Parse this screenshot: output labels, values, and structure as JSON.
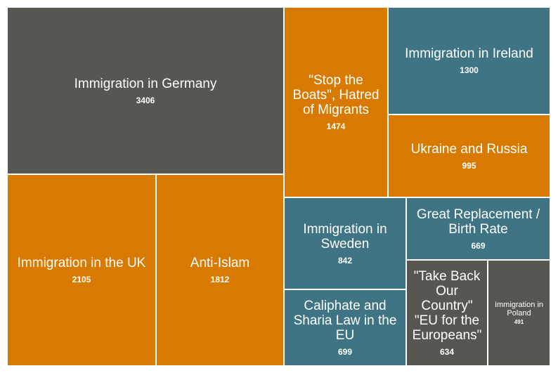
{
  "chart_data": {
    "type": "treemap",
    "title": "",
    "colors": {
      "gray": "#585651",
      "orange": "#d97a00",
      "teal": "#3e7484"
    },
    "items": [
      {
        "label": "Immigration in Germany",
        "value": 3406,
        "color": "gray"
      },
      {
        "label": "Immigration in the UK",
        "value": 2105,
        "color": "orange"
      },
      {
        "label": "Anti-Islam",
        "value": 1812,
        "color": "orange"
      },
      {
        "label": "\"Stop the Boats\", Hatred of Migrants",
        "value": 1474,
        "color": "orange"
      },
      {
        "label": "Immigration in Ireland",
        "value": 1300,
        "color": "teal"
      },
      {
        "label": "Ukraine and Russia",
        "value": 995,
        "color": "orange"
      },
      {
        "label": "Immigration in Sweden",
        "value": 842,
        "color": "teal"
      },
      {
        "label": "Caliphate and Sharia Law in the EU",
        "value": 699,
        "color": "teal"
      },
      {
        "label": "Great Replacement / Birth Rate",
        "value": 669,
        "color": "teal"
      },
      {
        "label": "\"Take Back Our Country\" \"EU for the Europeans\"",
        "value": 634,
        "color": "gray"
      },
      {
        "label": "Immigration in Poland",
        "value": 491,
        "color": "gray"
      }
    ]
  }
}
